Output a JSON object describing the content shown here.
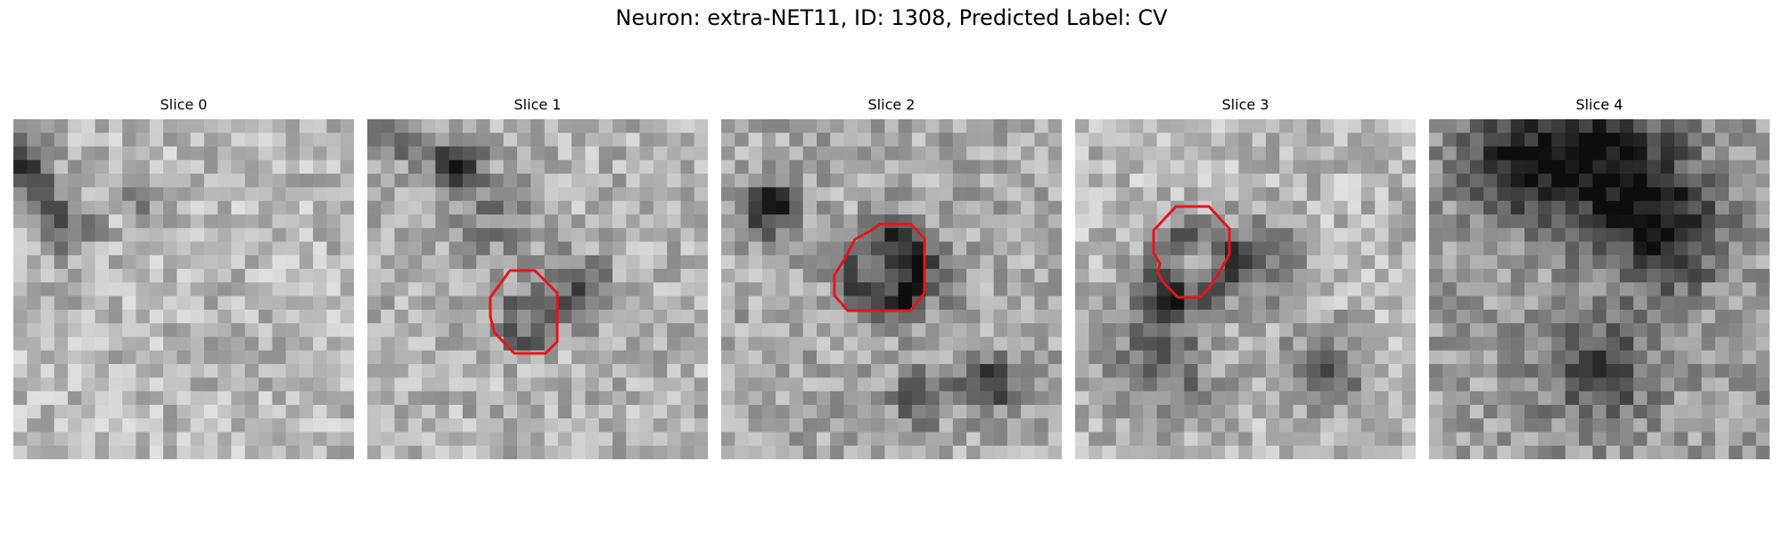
{
  "figure": {
    "title": "Neuron: extra-NET11, ID: 1308, Predicted Label: CV"
  },
  "contour_color": "#e8141b",
  "panels": [
    {
      "title": "Slice 0",
      "seed": 11,
      "dark": [
        [
          0,
          3,
          2.2,
          0.45
        ],
        [
          2,
          6,
          2,
          0.3
        ],
        [
          4,
          8,
          1.8,
          0.25
        ],
        [
          9,
          5,
          1.5,
          0.25
        ]
      ],
      "base": 0.72,
      "contour": null
    },
    {
      "title": "Slice 1",
      "seed": 23,
      "dark": [
        [
          6,
          3,
          2,
          0.55
        ],
        [
          1,
          1,
          2,
          0.3
        ],
        [
          15,
          12,
          2.4,
          0.35
        ],
        [
          9,
          7,
          3,
          0.2
        ]
      ],
      "base": 0.7,
      "contour": "ring1"
    },
    {
      "title": "Slice 2",
      "seed": 37,
      "dark": [
        [
          3,
          6,
          2,
          0.55
        ],
        [
          13,
          11,
          3.2,
          0.35
        ],
        [
          19,
          19,
          2,
          0.45
        ],
        [
          14,
          20,
          2,
          0.3
        ]
      ],
      "base": 0.66,
      "contour": "ring2"
    },
    {
      "title": "Slice 3",
      "seed": 51,
      "dark": [
        [
          13,
          10,
          3,
          0.3
        ],
        [
          6,
          13,
          3,
          0.25
        ],
        [
          18,
          18,
          3,
          0.35
        ],
        [
          6,
          18,
          4,
          0.3
        ]
      ],
      "base": 0.72,
      "contour": "ring3"
    },
    {
      "title": "Slice 4",
      "seed": 67,
      "dark": [
        [
          6,
          3,
          4,
          0.5
        ],
        [
          13,
          3,
          5,
          0.55
        ],
        [
          17,
          8,
          4,
          0.45
        ],
        [
          12,
          18,
          4,
          0.35
        ]
      ],
      "base": 0.62,
      "contour": null
    }
  ]
}
